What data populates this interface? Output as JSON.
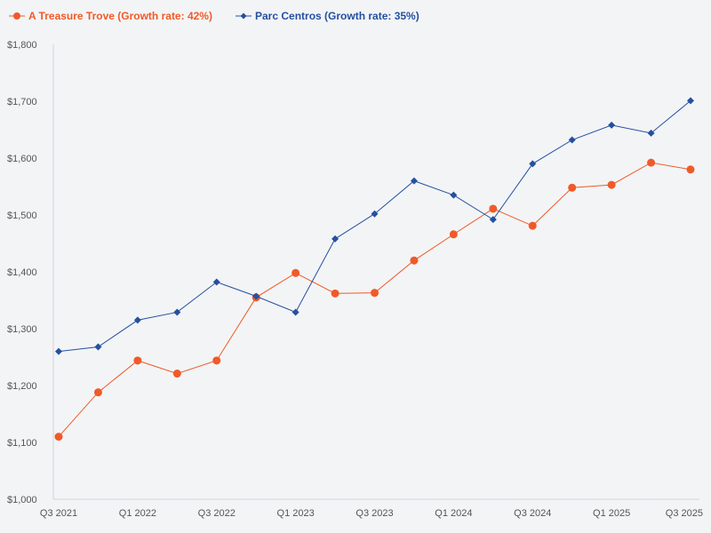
{
  "chart_data": {
    "type": "line",
    "title": "",
    "xlabel": "",
    "ylabel": "",
    "ylim": [
      1000,
      1800
    ],
    "yticks": [
      1000,
      1100,
      1200,
      1300,
      1400,
      1500,
      1600,
      1700,
      1800
    ],
    "ytick_labels": [
      "$1,000",
      "$1,100",
      "$1,200",
      "$1,300",
      "$1,400",
      "$1,500",
      "$1,600",
      "$1,700",
      "$1,800"
    ],
    "categories": [
      "Q3 2021",
      "Q4 2021",
      "Q1 2022",
      "Q2 2022",
      "Q3 2022",
      "Q4 2022",
      "Q1 2023",
      "Q2 2023",
      "Q3 2023",
      "Q4 2023",
      "Q1 2024",
      "Q2 2024",
      "Q3 2024",
      "Q4 2024",
      "Q1 2025",
      "Q2 2025",
      "Q3 2025"
    ],
    "xtick_labels": [
      "Q3 2021",
      "Q1 2022",
      "Q3 2022",
      "Q1 2023",
      "Q3 2023",
      "Q1 2024",
      "Q3 2024",
      "Q1 2025",
      "Q3 2025"
    ],
    "xtick_indices": [
      0,
      2,
      4,
      6,
      8,
      10,
      12,
      14,
      16
    ],
    "legend_position": "top-left",
    "grid": false,
    "series": [
      {
        "name": "A Treasure Trove (Growth rate: 42%)",
        "color": "#f05a28",
        "marker": "circle",
        "values": [
          1110,
          1188,
          1244,
          1221,
          1244,
          1355,
          1398,
          1362,
          1363,
          1420,
          1466,
          1511,
          1481,
          1548,
          1553,
          1592,
          1580
        ]
      },
      {
        "name": "Parc Centros (Growth rate: 35%)",
        "color": "#2450a0",
        "marker": "diamond",
        "values": [
          1260,
          1268,
          1315,
          1329,
          1382,
          1357,
          1329,
          1458,
          1502,
          1560,
          1535,
          1492,
          1590,
          1632,
          1658,
          1644,
          1701
        ]
      }
    ]
  }
}
